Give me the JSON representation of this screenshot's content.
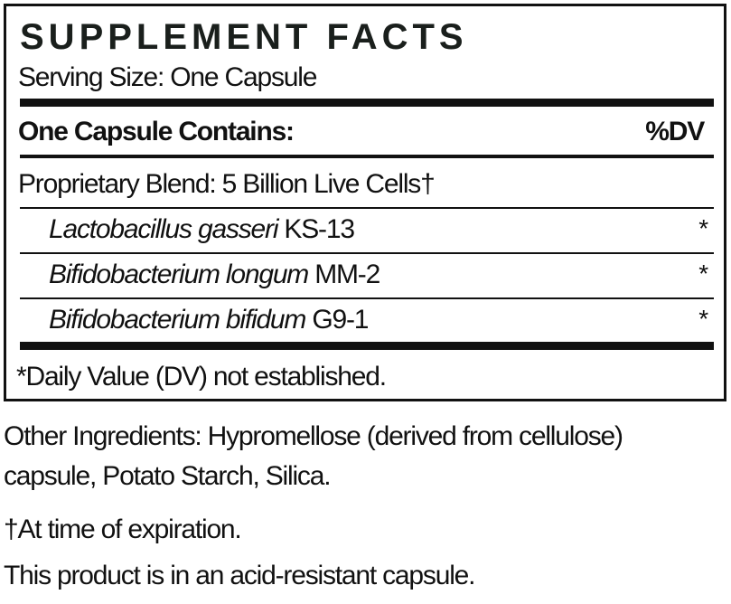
{
  "panel": {
    "title": "SUPPLEMENT FACTS",
    "serving_size": "Serving Size: One Capsule",
    "header_left": "One Capsule Contains:",
    "header_right": "%DV",
    "blend": "Proprietary Blend: 5 Billion Live Cells†",
    "ingredients": [
      {
        "species": "Lactobacillus gasseri",
        "strain": " KS-13",
        "dv": "*"
      },
      {
        "species": "Bifidobacterium longum",
        "strain": " MM-2",
        "dv": "*"
      },
      {
        "species": "Bifidobacterium bifidum",
        "strain": " G9-1",
        "dv": "*"
      }
    ],
    "footnote": "*Daily Value (DV) not established."
  },
  "notes": {
    "other_line1": "Other Ingredients: Hypromellose (derived from cellulose)",
    "other_line2": "capsule, Potato Starch, Silica.",
    "dagger": "†At time of expiration.",
    "capsule": "This product is in an acid-resistant capsule."
  }
}
